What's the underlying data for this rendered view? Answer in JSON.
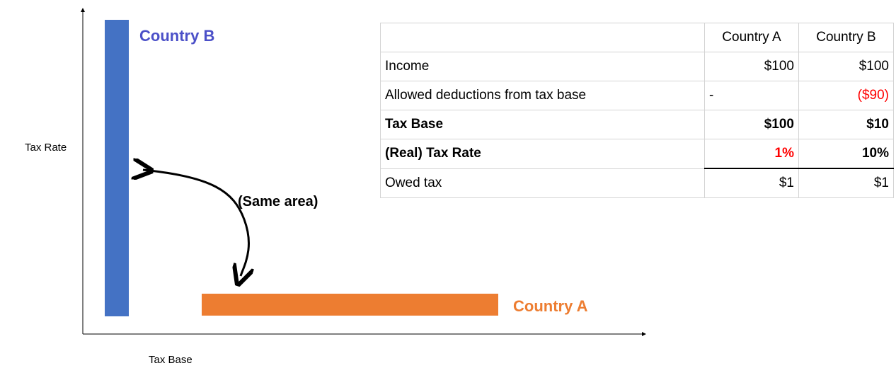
{
  "diagram": {
    "y_axis_label": "Tax Rate",
    "x_axis_label": "Tax Base",
    "country_b_label": "Country B",
    "country_a_label": "Country A",
    "annotation": "(Same area)"
  },
  "table": {
    "header": [
      "Country A",
      "Country B"
    ],
    "rows": [
      [
        "Income",
        "$100",
        "$100"
      ],
      [
        "Allowed deductions from tax base",
        "-",
        "($90)"
      ],
      [
        "Tax Base",
        "$100",
        "$10"
      ],
      [
        "(Real) Tax Rate",
        "1%",
        "10%"
      ],
      [
        "Owed tax",
        "$1",
        "$1"
      ]
    ]
  }
}
